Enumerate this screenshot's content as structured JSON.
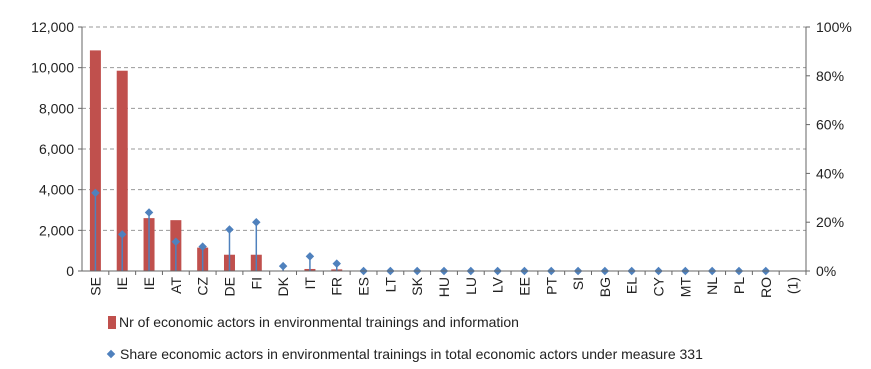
{
  "chart_data": {
    "type": "bar",
    "categories": [
      "SE",
      "IE",
      "IE",
      "AT",
      "CZ",
      "DE",
      "FI",
      "DK",
      "IT",
      "FR",
      "ES",
      "LT",
      "SK",
      "HU",
      "LU",
      "LV",
      "EE",
      "PT",
      "SI",
      "BG",
      "EL",
      "CY",
      "MT",
      "NL",
      "PL",
      "RO",
      "(1)"
    ],
    "y_left": {
      "ylim": [
        0,
        12000
      ],
      "ticks": [
        "0",
        "2,000",
        "4,000",
        "6,000",
        "8,000",
        "10,000",
        "12,000"
      ]
    },
    "y_right": {
      "ylim": [
        0,
        100
      ],
      "ticks": [
        "0%",
        "20%",
        "40%",
        "60%",
        "80%",
        "100%"
      ]
    },
    "grid": true,
    "legend_position": "bottom",
    "series": [
      {
        "name": "Nr of economic actors in environmental trainings and information",
        "kind": "bar",
        "axis": "left",
        "color": "#c0504d",
        "values": [
          10850,
          9850,
          2600,
          2500,
          1150,
          800,
          800,
          0,
          100,
          80,
          0,
          0,
          0,
          0,
          0,
          0,
          0,
          0,
          0,
          0,
          0,
          0,
          0,
          0,
          0,
          0,
          0
        ]
      },
      {
        "name": "Share economic actors in environmental trainings in total economic actors under measure 331",
        "kind": "point",
        "axis": "right",
        "color": "#4f81bd",
        "values": [
          32,
          15,
          24,
          12,
          10,
          17,
          20,
          2,
          6,
          3,
          0,
          0,
          0,
          0,
          0,
          0,
          0,
          0,
          0,
          0,
          0,
          0,
          0,
          0,
          0,
          0,
          null
        ]
      }
    ]
  },
  "legend": {
    "bar_label": "Nr of economic actors in  environmental trainings and information",
    "point_label": "Share economic actors in environmental trainings in total economic actors under measure 331"
  }
}
